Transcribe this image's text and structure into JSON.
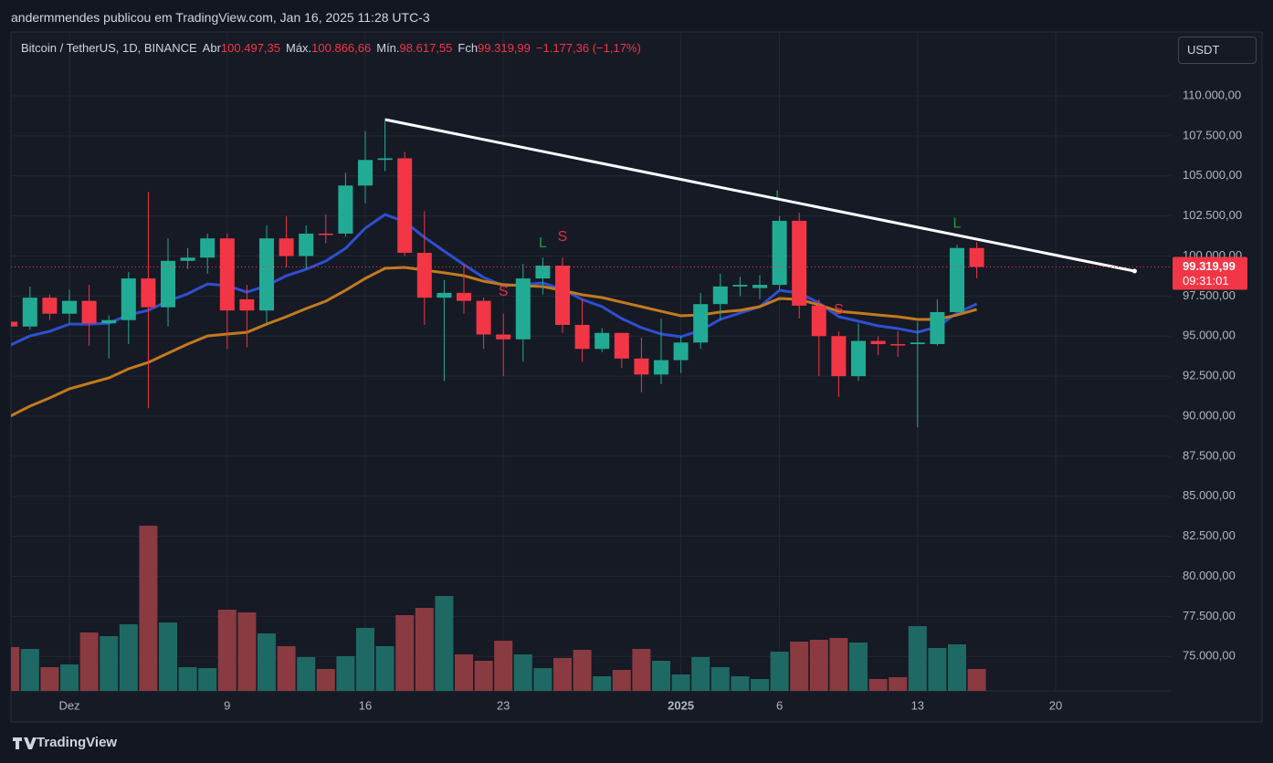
{
  "chart_data": {
    "type": "candlestick",
    "header": "andermmendes publicou em TradingView.com, Jan 16, 2025 11:28 UTC-3",
    "title": "Bitcoin / TetherUS, 1D, BINANCE",
    "ohlc_legend": [
      {
        "label": "Abr",
        "value": "100.497,35"
      },
      {
        "label": "Máx.",
        "value": "100.866,66"
      },
      {
        "label": "Mín.",
        "value": "98.617,55"
      },
      {
        "label": "Fch",
        "value": "99.319,99"
      }
    ],
    "change": "−1.177,36 (−1,17%)",
    "currency_button": "USDT",
    "last_price_label": "99.319,99",
    "countdown": "09:31:01",
    "brand": "TradingView",
    "up_color": "#22ab94",
    "down_color": "#f23645",
    "volume_up_color": "#1e6963",
    "volume_down_color": "#8a3a41",
    "categories": [
      "2024-11-28",
      "2024-11-29",
      "2024-11-30",
      "2024-12-01",
      "2024-12-02",
      "2024-12-03",
      "2024-12-04",
      "2024-12-05",
      "2024-12-06",
      "2024-12-07",
      "2024-12-08",
      "2024-12-09",
      "2024-12-10",
      "2024-12-11",
      "2024-12-12",
      "2024-12-13",
      "2024-12-14",
      "2024-12-15",
      "2024-12-16",
      "2024-12-17",
      "2024-12-18",
      "2024-12-19",
      "2024-12-20",
      "2024-12-21",
      "2024-12-22",
      "2024-12-23",
      "2024-12-24",
      "2024-12-25",
      "2024-12-26",
      "2024-12-27",
      "2024-12-28",
      "2024-12-29",
      "2024-12-30",
      "2024-12-31",
      "2025-01-01",
      "2025-01-02",
      "2025-01-03",
      "2025-01-04",
      "2025-01-05",
      "2025-01-06",
      "2025-01-07",
      "2025-01-08",
      "2025-01-09",
      "2025-01-10",
      "2025-01-11",
      "2025-01-12",
      "2025-01-13",
      "2025-01-14",
      "2025-01-15",
      "2025-01-16"
    ],
    "open": [
      95900,
      95600,
      97400,
      96400,
      97200,
      95800,
      96000,
      98600,
      96800,
      99700,
      99900,
      101100,
      97300,
      96600,
      101100,
      100000,
      101400,
      101400,
      104400,
      106000,
      106100,
      100200,
      97400,
      97700,
      97200,
      95100,
      94800,
      98600,
      99400,
      95700,
      94200,
      95200,
      93600,
      92600,
      93500,
      94600,
      97000,
      98100,
      98000,
      98200,
      102200,
      96900,
      95000,
      92500,
      94700,
      94500,
      94500,
      94500,
      96500,
      100497.35
    ],
    "high": [
      96200,
      98100,
      97600,
      97900,
      98200,
      96300,
      99000,
      104000,
      101100,
      100500,
      101400,
      101400,
      98200,
      101900,
      102500,
      101900,
      102600,
      105200,
      107800,
      108400,
      106500,
      102800,
      98500,
      99500,
      97400,
      96400,
      99500,
      99900,
      99900,
      97300,
      95500,
      95200,
      94900,
      96100,
      95000,
      97700,
      98900,
      98700,
      98800,
      102500,
      102700,
      97300,
      95300,
      95800,
      95000,
      95300,
      95900,
      97300,
      100700,
      100866.66
    ],
    "low": [
      95400,
      95400,
      96000,
      95800,
      94400,
      93600,
      94500,
      90500,
      95600,
      99200,
      98900,
      94200,
      94300,
      95800,
      99300,
      99200,
      100800,
      101200,
      103300,
      105300,
      100000,
      95700,
      92200,
      96400,
      94200,
      92500,
      93400,
      97600,
      95200,
      93400,
      94000,
      93000,
      91500,
      92000,
      92700,
      94200,
      96000,
      97500,
      97300,
      97900,
      96100,
      92500,
      91200,
      92200,
      93800,
      93700,
      89300,
      94400,
      96500,
      98617.55
    ],
    "close": [
      95600,
      97400,
      96400,
      97200,
      95800,
      96000,
      98600,
      96800,
      99700,
      99900,
      101100,
      96600,
      96600,
      101100,
      100000,
      101400,
      101350,
      104400,
      106000,
      106100,
      100200,
      97400,
      97700,
      97200,
      95100,
      94800,
      98600,
      99400,
      95700,
      94200,
      95200,
      93600,
      92600,
      93500,
      94600,
      97000,
      98100,
      98200,
      98200,
      102200,
      96900,
      95000,
      92500,
      94700,
      94500,
      94450,
      94600,
      96500,
      100500,
      99319.99
    ],
    "volume": [
      48000,
      46000,
      26000,
      29000,
      64000,
      60000,
      73000,
      181000,
      75000,
      26000,
      25000,
      89000,
      86000,
      63000,
      49000,
      37000,
      24000,
      38000,
      69000,
      49000,
      83000,
      91000,
      104000,
      40000,
      33000,
      55000,
      40000,
      25000,
      36000,
      45000,
      16000,
      23000,
      46000,
      33000,
      18000,
      37000,
      26000,
      16000,
      13000,
      43000,
      54000,
      56000,
      58000,
      53000,
      13000,
      15000,
      71000,
      47000,
      51000,
      24000
    ],
    "moving_averages": [
      {
        "color": "#2f4fd0",
        "values": [
          94440,
          95010,
          95300,
          95750,
          95750,
          95810,
          96320,
          96610,
          97180,
          97640,
          98260,
          98150,
          97750,
          98150,
          98770,
          99170,
          99690,
          100480,
          101740,
          102590,
          102140,
          101170,
          100310,
          99460,
          98660,
          98150,
          98210,
          98320,
          97920,
          97290,
          96840,
          96100,
          95530,
          95130,
          94960,
          95360,
          96040,
          96440,
          96840,
          97860,
          97690,
          97070,
          96210,
          95930,
          95640,
          95470,
          95240,
          95580,
          96440,
          97010
        ]
      },
      {
        "color": "#c27a1e",
        "values": [
          90000,
          90630,
          91140,
          91710,
          92050,
          92390,
          92960,
          93360,
          93930,
          94500,
          95010,
          95130,
          95240,
          95750,
          96210,
          96720,
          97180,
          97860,
          98600,
          99230,
          99290,
          99120,
          98950,
          98770,
          98430,
          98210,
          98150,
          98090,
          97860,
          97580,
          97410,
          97120,
          96840,
          96550,
          96270,
          96320,
          96500,
          96610,
          96840,
          97350,
          97290,
          96950,
          96550,
          96440,
          96320,
          96210,
          96040,
          96040,
          96320,
          96670
        ]
      }
    ],
    "trendline": {
      "color": "#ffffff",
      "x": [
        "2024-12-17",
        "2025-01-24"
      ],
      "values": [
        108520,
        99060
      ]
    },
    "signals": [
      {
        "text": "S",
        "date": "2024-12-23",
        "value": 97750,
        "color": "#e0313f"
      },
      {
        "text": "L",
        "date": "2024-12-25",
        "value": 100770,
        "color": "#1f9a3a"
      },
      {
        "text": "S",
        "date": "2024-12-26",
        "value": 101170,
        "color": "#e0313f"
      },
      {
        "text": "L",
        "date": "2025-01-06",
        "value": 103730,
        "color": "#1f9a3a"
      },
      {
        "text": "S",
        "date": "2025-01-09",
        "value": 96610,
        "color": "#e0313f"
      },
      {
        "text": "L",
        "date": "2025-01-15",
        "value": 102020,
        "color": "#1f9a3a"
      }
    ],
    "ylim": [
      72850,
      113990
    ],
    "yticks": [
      {
        "value": 75000,
        "label": "75.000,00"
      },
      {
        "value": 77500,
        "label": "77.500,00"
      },
      {
        "value": 80000,
        "label": "80.000,00"
      },
      {
        "value": 82500,
        "label": "82.500,00"
      },
      {
        "value": 85000,
        "label": "85.000,00"
      },
      {
        "value": 87500,
        "label": "87.500,00"
      },
      {
        "value": 90000,
        "label": "90.000,00"
      },
      {
        "value": 92500,
        "label": "92.500,00"
      },
      {
        "value": 95000,
        "label": "95.000,00"
      },
      {
        "value": 97500,
        "label": "97.500,00"
      },
      {
        "value": 100000,
        "label": "100.000,00"
      },
      {
        "value": 102500,
        "label": "102.500,00"
      },
      {
        "value": 105000,
        "label": "105.000,00"
      },
      {
        "value": 107500,
        "label": "107.500,00"
      },
      {
        "value": 110000,
        "label": "110.000,00"
      }
    ],
    "xticks": [
      {
        "value": "2024-12-01",
        "label": "Dez"
      },
      {
        "value": "2024-12-09",
        "label": "9"
      },
      {
        "value": "2024-12-16",
        "label": "16"
      },
      {
        "value": "2024-12-23",
        "label": "23"
      },
      {
        "value": "2025-01-01",
        "label": "2025"
      },
      {
        "value": "2025-01-06",
        "label": "6"
      },
      {
        "value": "2025-01-13",
        "label": "13"
      },
      {
        "value": "2025-01-20",
        "label": "20"
      }
    ],
    "grid": true
  }
}
